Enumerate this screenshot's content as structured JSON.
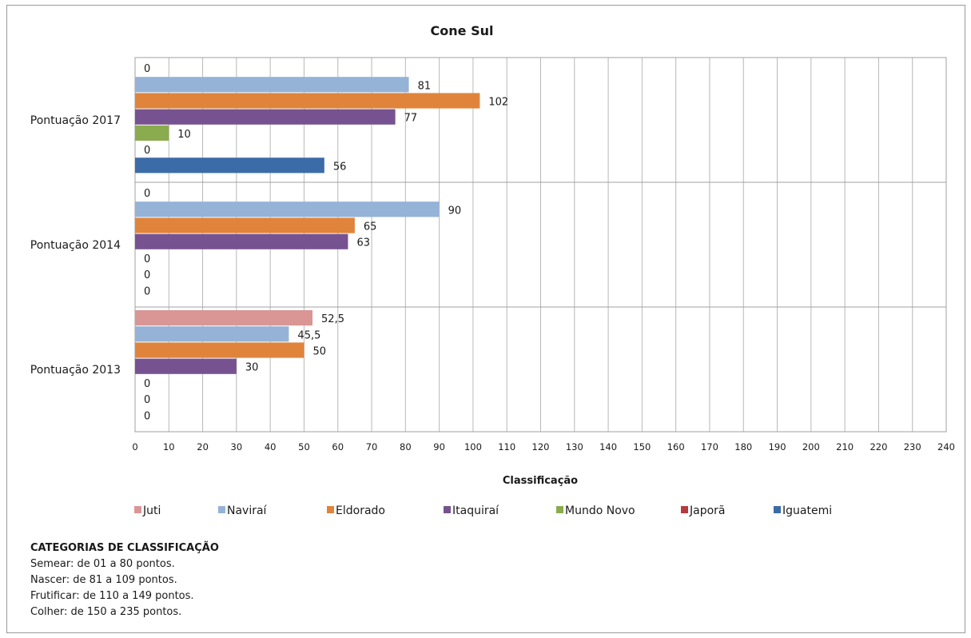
{
  "chart_data": {
    "type": "bar",
    "orientation": "horizontal",
    "title": "Cone Sul",
    "xlabel": "Classificação",
    "ylabel": "",
    "xlim": [
      0,
      240
    ],
    "x_ticks": [
      0,
      10,
      20,
      30,
      40,
      50,
      60,
      70,
      80,
      90,
      100,
      110,
      120,
      130,
      140,
      150,
      160,
      170,
      180,
      190,
      200,
      210,
      220,
      230,
      240
    ],
    "grid": true,
    "legend_position": "bottom",
    "categories": [
      "Pontuação 2013",
      "Pontuação 2014",
      "Pontuação 2017"
    ],
    "series": [
      {
        "name": "Juti",
        "color": "#d99694",
        "values": [
          52.5,
          null,
          null
        ],
        "labels": [
          "52,5",
          "",
          ""
        ]
      },
      {
        "name": "Naviraí",
        "color": "#95b3d7",
        "values": [
          45.5,
          90,
          81
        ],
        "labels": [
          "45,5",
          "90",
          "81"
        ]
      },
      {
        "name": "Eldorado",
        "color": "#e0843c",
        "values": [
          50,
          65,
          102
        ],
        "labels": [
          "50",
          "65",
          "102"
        ]
      },
      {
        "name": "Itaquiraí",
        "color": "#765390",
        "values": [
          30,
          63,
          77
        ],
        "labels": [
          "30",
          "63",
          "77"
        ]
      },
      {
        "name": "Mundo Novo",
        "color": "#8aab4e",
        "values": [
          0,
          0,
          10
        ],
        "labels": [
          "0",
          "0",
          "10"
        ]
      },
      {
        "name": "Japorã",
        "color": "#b43c3c",
        "values": [
          0,
          0,
          0
        ],
        "labels": [
          "0",
          "0",
          "0"
        ]
      },
      {
        "name": "Iguatemi",
        "color": "#3c6ca8",
        "values": [
          0,
          0,
          56
        ],
        "labels": [
          "0",
          "0",
          "56"
        ]
      }
    ],
    "top_labels": [
      "",
      "0",
      "0"
    ]
  },
  "notes": {
    "heading": "CATEGORIAS DE CLASSIFICAÇÃO",
    "lines": [
      "Semear: de 01 a 80 pontos.",
      "Nascer: de 81 a 109 pontos.",
      "Frutificar: de 110 a 149 pontos.",
      "Colher: de 150 a 235 pontos."
    ]
  }
}
